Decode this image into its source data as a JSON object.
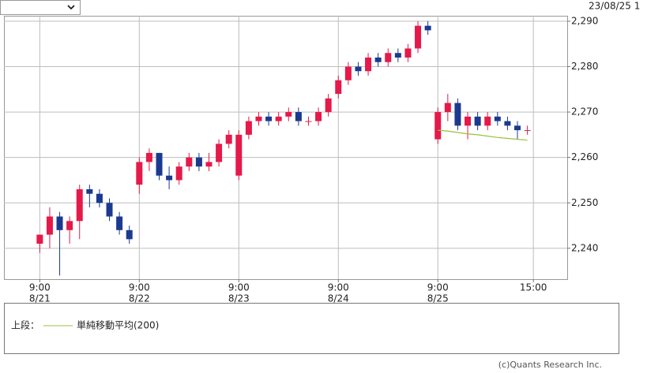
{
  "header": {
    "timestamp": "23/08/25 1"
  },
  "chart_data": {
    "type": "candlestick",
    "x": [
      0,
      1,
      2,
      3,
      4,
      5,
      6,
      7,
      8,
      9,
      10,
      11,
      12,
      13,
      14,
      15,
      16,
      17,
      18,
      19,
      20,
      21,
      22,
      23,
      24,
      25,
      26,
      27,
      28,
      29,
      30,
      31,
      32,
      33,
      34,
      35,
      36,
      37,
      38,
      39,
      40,
      41,
      42,
      43,
      44,
      45,
      46,
      47,
      48,
      49
    ],
    "open": [
      2241,
      2243,
      2247,
      2244,
      2246,
      2253,
      2252,
      2250,
      2247,
      2244,
      2254,
      2259,
      2261,
      2256,
      2255,
      2258,
      2260,
      2258,
      2259,
      2263,
      2256,
      2265,
      2268,
      2269,
      2268,
      2269,
      2270,
      2268,
      2268,
      2270,
      2274,
      2277,
      2280,
      2279,
      2282,
      2281,
      2283,
      2282,
      2284,
      2289,
      2264,
      2270,
      2272,
      2267,
      2269,
      2267,
      2269,
      2268,
      2267,
      2266
    ],
    "high": [
      2243,
      2249,
      2248,
      2247,
      2254,
      2254,
      2253,
      2251,
      2248,
      2245,
      2260,
      2262,
      2261,
      2258,
      2259,
      2261,
      2261,
      2261,
      2264,
      2266,
      2266,
      2269,
      2270,
      2270,
      2270,
      2271,
      2271,
      2269,
      2271,
      2274,
      2278,
      2281,
      2281,
      2283,
      2283,
      2284,
      2284,
      2285,
      2290,
      2290,
      2271,
      2274,
      2273,
      2270,
      2270,
      2270,
      2270,
      2269,
      2268,
      2267
    ],
    "low": [
      2239,
      2240,
      2234,
      2241,
      2242,
      2249,
      2249,
      2246,
      2243,
      2241,
      2252,
      2257,
      2255,
      2253,
      2254,
      2257,
      2257,
      2257,
      2258,
      2262,
      2255,
      2264,
      2267,
      2267,
      2267,
      2268,
      2267,
      2267,
      2267,
      2269,
      2273,
      2276,
      2278,
      2278,
      2280,
      2280,
      2281,
      2281,
      2283,
      2287,
      2263,
      2268,
      2266,
      2264,
      2266,
      2266,
      2267,
      2266,
      2264,
      2265
    ],
    "close": [
      2243,
      2247,
      2244,
      2246,
      2253,
      2252,
      2250,
      2247,
      2244,
      2242,
      2259,
      2261,
      2256,
      2255,
      2258,
      2260,
      2258,
      2259,
      2263,
      2265,
      2265,
      2268,
      2269,
      2268,
      2269,
      2270,
      2268,
      2268,
      2270,
      2273,
      2277,
      2280,
      2279,
      2282,
      2281,
      2283,
      2282,
      2284,
      2289,
      2288,
      2270,
      2272,
      2267,
      2269,
      2267,
      2269,
      2268,
      2267,
      2266,
      2266
    ],
    "up_color": "#e5194a",
    "down_color": "#1b3a8f",
    "series": [
      {
        "name": "単純移動平均(200)",
        "color": "#99c23a",
        "values": [
          null,
          null,
          null,
          null,
          null,
          null,
          null,
          null,
          null,
          null,
          null,
          null,
          null,
          null,
          null,
          null,
          null,
          null,
          null,
          null,
          null,
          null,
          null,
          null,
          null,
          null,
          null,
          null,
          null,
          null,
          null,
          null,
          null,
          null,
          null,
          null,
          null,
          null,
          null,
          null,
          2266,
          2265.8,
          2265.5,
          2265.2,
          2265,
          2264.7,
          2264.4,
          2264.2,
          2264,
          2263.8
        ]
      }
    ],
    "legend_prefix": "上段：",
    "xlim": [
      -3.6,
      53
    ],
    "xticks": [
      {
        "value": 0,
        "label": "9:00"
      },
      {
        "value": 10,
        "label": "9:00"
      },
      {
        "value": 20,
        "label": "9:00"
      },
      {
        "value": 30,
        "label": "9:00"
      },
      {
        "value": 40,
        "label": "9:00"
      },
      {
        "value": 49.6,
        "label": "15:00"
      }
    ],
    "xtick_dates": [
      "8/21",
      "8/22",
      "8/23",
      "8/24",
      "8/25"
    ],
    "ylim": [
      2233.2,
      2291.2
    ],
    "yticks": [
      {
        "value": 2240,
        "label": "2,240"
      },
      {
        "value": 2250,
        "label": "2,250"
      },
      {
        "value": 2260,
        "label": "2,260"
      },
      {
        "value": 2270,
        "label": "2,270"
      },
      {
        "value": 2280,
        "label": "2,280"
      },
      {
        "value": 2290,
        "label": "2,290"
      }
    ],
    "grid": true
  },
  "footer": {
    "copyright": "(c)Quants Research Inc."
  }
}
